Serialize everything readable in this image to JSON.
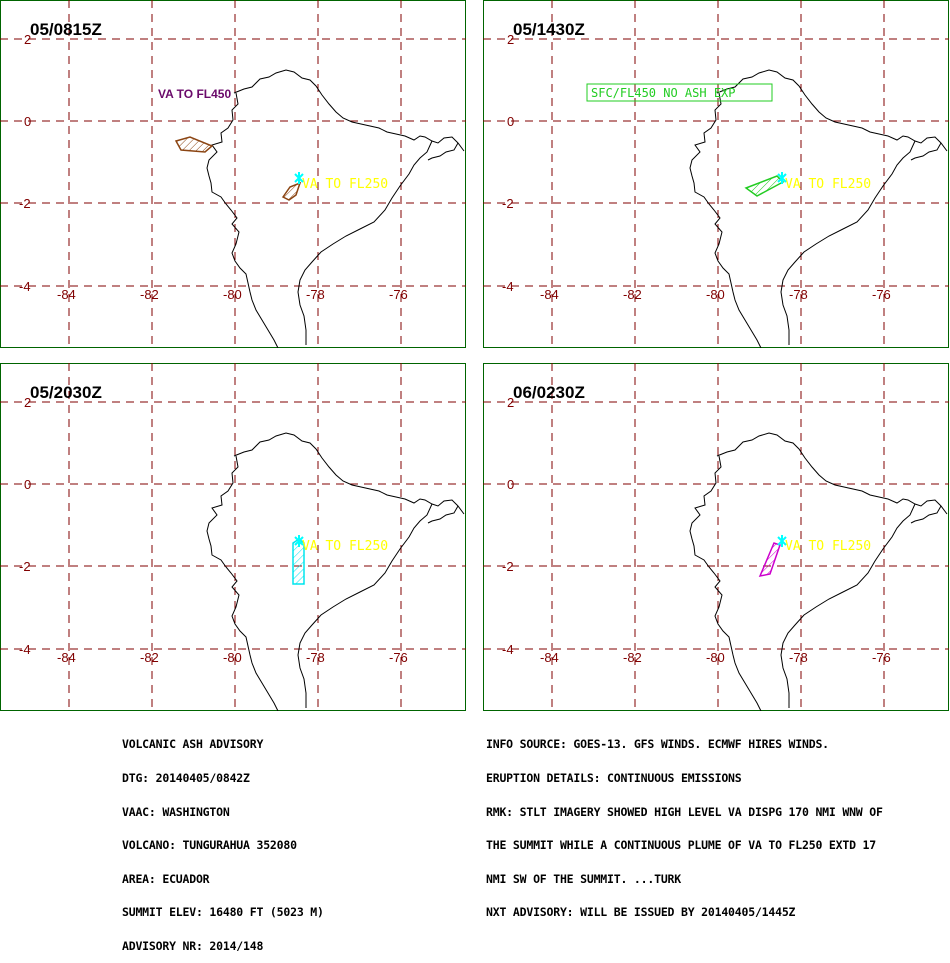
{
  "panels": [
    {
      "time": "05/0815Z",
      "labels": [
        {
          "text": "VA TO FL450",
          "color": "#6a0a6a",
          "boxed": false
        },
        {
          "text": "VA TO FL250",
          "color": "#ffff00",
          "boxed": false
        }
      ]
    },
    {
      "time": "05/1430Z",
      "labels": [
        {
          "text": "SFC/FL450 NO ASH EXP",
          "color": "#22cc22",
          "boxed": true
        },
        {
          "text": "VA TO FL250",
          "color": "#ffff00",
          "boxed": false
        }
      ]
    },
    {
      "time": "05/2030Z",
      "labels": [
        {
          "text": "VA TO FL250",
          "color": "#ffff00",
          "boxed": false
        }
      ]
    },
    {
      "time": "06/0230Z",
      "labels": [
        {
          "text": "VA TO FL250",
          "color": "#ffff00",
          "boxed": false
        }
      ]
    }
  ],
  "grid": {
    "lon_labels": [
      "-84",
      "-82",
      "-80",
      "-78",
      "-76"
    ],
    "lat_labels": [
      "2",
      "0",
      "-2",
      "-4"
    ],
    "color": "#800000"
  },
  "advisory": [
    "VOLCANIC ASH ADVISORY",
    "DTG: 20140405/0842Z",
    "VAAC: WASHINGTON",
    "VOLCANO: TUNGURAHUA 352080",
    "AREA: ECUADOR",
    "SUMMIT ELEV: 16480 FT (5023 M)",
    "ADVISORY NR: 2014/148"
  ],
  "remarks": [
    "INFO SOURCE: GOES-13. GFS WINDS. ECMWF HIRES WINDS.",
    "ERUPTION DETAILS: CONTINUOUS EMISSIONS",
    "RMK: STLT IMAGERY SHOWED HIGH LEVEL VA DISPG 170 NMI WNW OF",
    "THE SUMMIT WHILE A CONTINUOUS PLUME OF VA TO FL250 EXTD 17",
    "NMI SW OF THE SUMMIT. ...TURK",
    "NXT ADVISORY: WILL BE ISSUED BY 20140405/1445Z"
  ],
  "colors": {
    "frame": "#006400",
    "coast": "#000000",
    "volcano": "#00ffff",
    "high_level_ash": "#8b4513",
    "no_ash": "#22cc22",
    "plume_2030": "#00e5ee",
    "plume_0230": "#cc00cc",
    "label_fl250": "#ffff00"
  }
}
